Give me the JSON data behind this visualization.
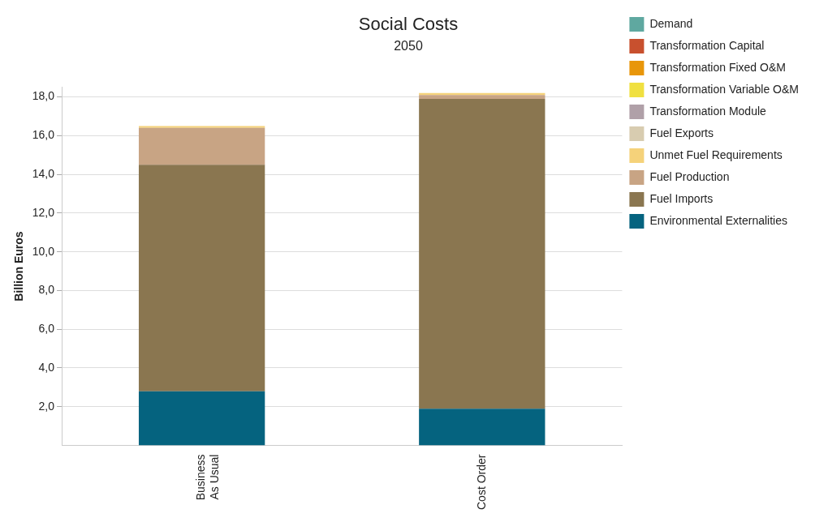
{
  "chart_data": {
    "type": "bar",
    "title": "Social Costs",
    "subtitle": "2050",
    "ylabel": "Billion Euros",
    "categories": [
      "Business\nAs Usual",
      "Cost Order"
    ],
    "stacked": true,
    "grid": "y",
    "legend": "top right",
    "ylim": [
      0,
      18.5
    ],
    "yticks": [
      {
        "value": 2,
        "label": "2,0"
      },
      {
        "value": 4,
        "label": "4,0"
      },
      {
        "value": 6,
        "label": "6,0"
      },
      {
        "value": 8,
        "label": "8,0"
      },
      {
        "value": 10,
        "label": "10,0"
      },
      {
        "value": 12,
        "label": "12,0"
      },
      {
        "value": 14,
        "label": "14,0"
      },
      {
        "value": 16,
        "label": "16,0"
      },
      {
        "value": 18,
        "label": "18,0"
      }
    ],
    "series": [
      {
        "name": "Environmental Externalities",
        "color": "#05637f",
        "values": [
          2.8,
          1.9
        ]
      },
      {
        "name": "Fuel Imports",
        "color": "#8a7650",
        "values": [
          11.7,
          16.0
        ]
      },
      {
        "name": "Fuel Production",
        "color": "#c8a484",
        "values": [
          1.9,
          0.2
        ]
      },
      {
        "name": "Unmet Fuel Requirements",
        "color": "#f5d27a",
        "values": [
          0.1,
          0.1
        ]
      },
      {
        "name": "Fuel Exports",
        "color": "#d8ccb0",
        "values": [
          0,
          0
        ]
      },
      {
        "name": "Transformation Module",
        "color": "#b0a0a8",
        "values": [
          0,
          0
        ]
      },
      {
        "name": "Transformation Variable O&M",
        "color": "#f0e040",
        "values": [
          0,
          0
        ]
      },
      {
        "name": "Transformation Fixed O&M",
        "color": "#e8960a",
        "values": [
          0,
          0
        ]
      },
      {
        "name": "Transformation Capital",
        "color": "#c8502e",
        "values": [
          0,
          0
        ]
      },
      {
        "name": "Demand",
        "color": "#5fa8a0",
        "values": [
          0,
          0
        ]
      }
    ]
  }
}
